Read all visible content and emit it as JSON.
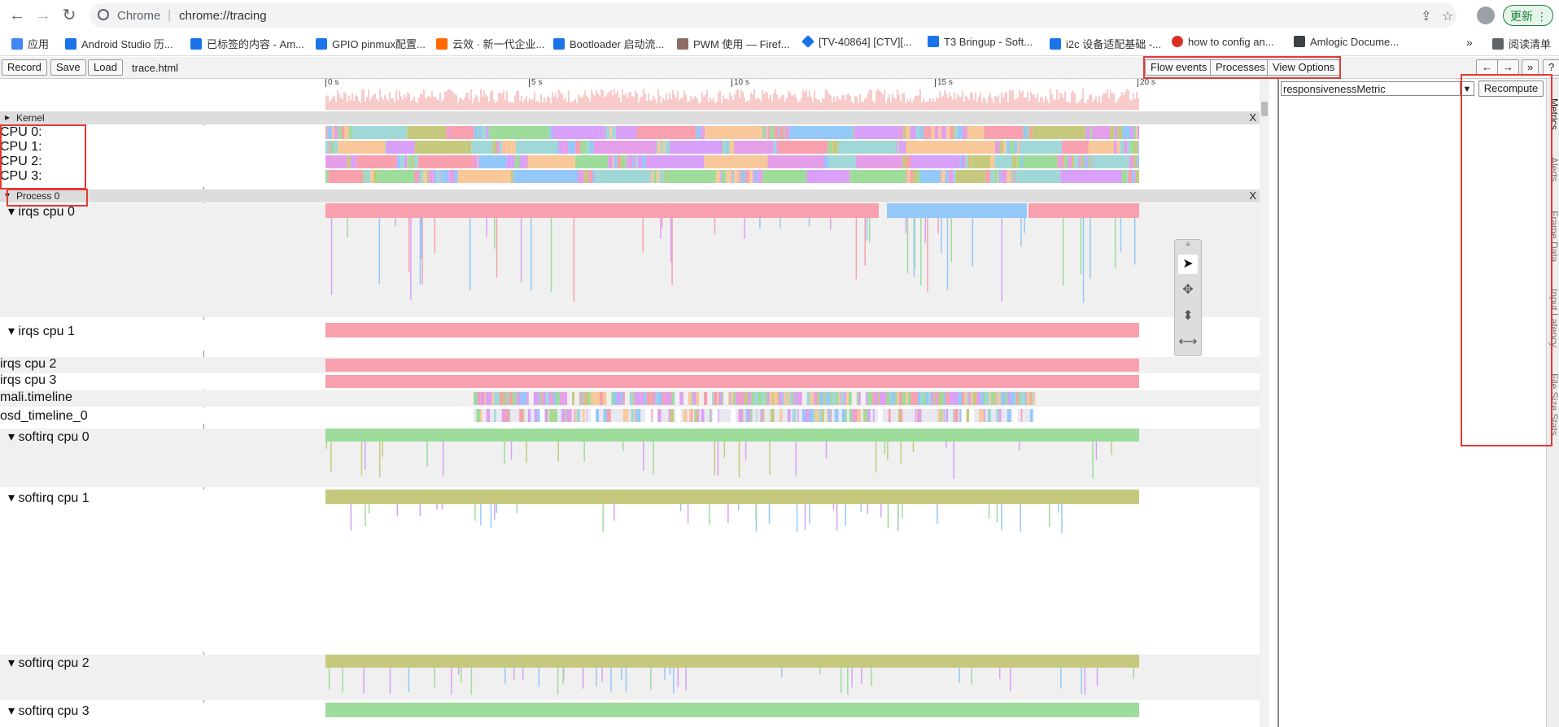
{
  "browser": {
    "app_name": "Chrome",
    "url": "chrome://tracing",
    "update_label": "更新"
  },
  "bookmarks": [
    {
      "label": "应用",
      "color": "#4285f4"
    },
    {
      "label": "Android Studio 历...",
      "color": "#1a73e8"
    },
    {
      "label": "已标签的内容 - Am...",
      "color": "#1a73e8"
    },
    {
      "label": "GPIO pinmux配置...",
      "color": "#1a73e8"
    },
    {
      "label": "云效 · 新一代企业...",
      "color": "#ff6a00"
    },
    {
      "label": "Bootloader 启动流...",
      "color": "#1a73e8"
    },
    {
      "label": "PWM 使用 — Firef...",
      "color": "#8d6e63"
    },
    {
      "label": "[TV-40864] [CTV][...",
      "color": "#1a73e8"
    },
    {
      "label": "T3 Bringup - Soft...",
      "color": "#1a73e8"
    },
    {
      "label": "i2c 设备适配基础 -...",
      "color": "#1a73e8"
    },
    {
      "label": "how to config an...",
      "color": "#d93025"
    },
    {
      "label": "Amlogic Docume...",
      "color": "#3c4043"
    },
    {
      "label": "阅读清单",
      "color": "#5f6368"
    }
  ],
  "toolbar": {
    "record_label": "Record",
    "save_label": "Save",
    "load_label": "Load",
    "file_name": "trace.html",
    "flow_events_label": "Flow events",
    "processes_label": "Processes",
    "view_options_label": "View Options"
  },
  "ruler": {
    "ticks": [
      "0 s",
      "5 s",
      "10 s",
      "15 s",
      "20 s"
    ]
  },
  "kernel": {
    "title": "Kernel",
    "close": "X",
    "cpus": [
      "CPU 0:",
      "CPU 1:",
      "CPU 2:",
      "CPU 3:"
    ]
  },
  "process": {
    "title": "Process 0",
    "close": "X",
    "tracks": [
      "irqs cpu 0",
      "irqs cpu 1",
      "irqs cpu 2",
      "irqs cpu 3",
      "mali.timeline",
      "osd_timeline_0",
      "softirq cpu 0",
      "softirq cpu 1",
      "softirq cpu 2",
      "softirq cpu 3"
    ]
  },
  "side_panel": {
    "metric": "responsivenessMetric",
    "recompute_label": "Recompute",
    "tabs": [
      "Metrics",
      "Alerts",
      "Frame Data",
      "Input Latency",
      "File Size Stats"
    ]
  },
  "colors": {
    "irq": "#f8a0ad",
    "irq_blue": "#94c8f8",
    "softirq_green": "#9ddc9a",
    "softirq_olive": "#c6c97d",
    "highlight": "#e53935"
  }
}
